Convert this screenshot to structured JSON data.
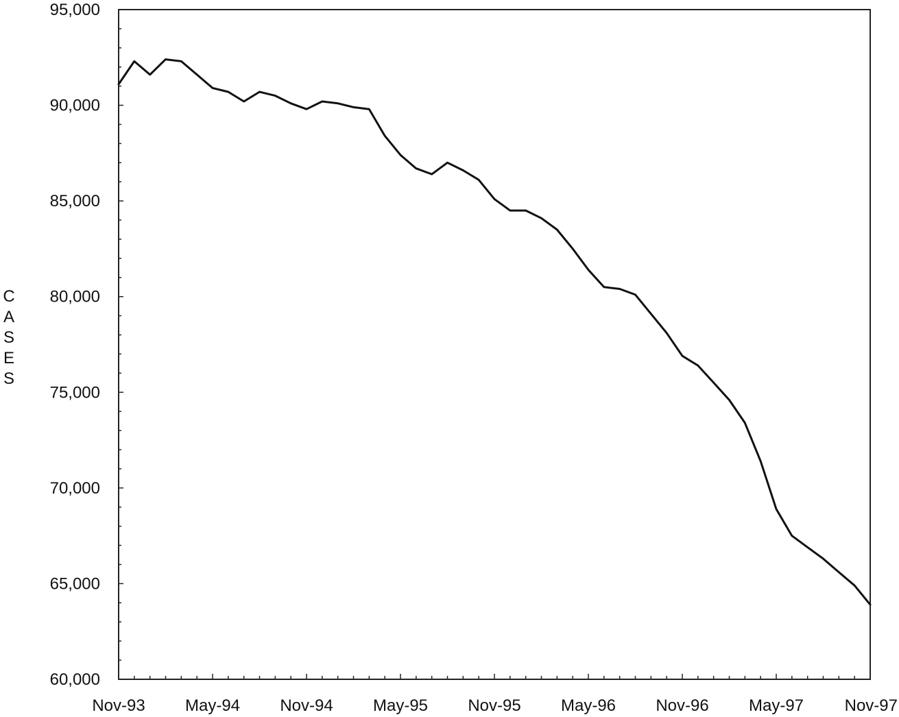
{
  "chart_data": {
    "type": "line",
    "title": "",
    "xlabel": "",
    "ylabel": "CASES",
    "x_tick_labels": [
      "Nov-93",
      "May-94",
      "Nov-94",
      "May-95",
      "Nov-95",
      "May-96",
      "Nov-96",
      "May-97",
      "Nov-97"
    ],
    "y_tick_labels": [
      "60,000",
      "65,000",
      "70,000",
      "75,000",
      "80,000",
      "85,000",
      "90,000",
      "95,000"
    ],
    "ylim": [
      60000,
      95000
    ],
    "xlim_months": [
      "Nov-93",
      "Nov-97"
    ],
    "grid": false,
    "legend": "none",
    "series": [
      {
        "x": [
          "Nov-93",
          "Dec-93",
          "Jan-94",
          "Feb-94",
          "Mar-94",
          "Apr-94",
          "May-94",
          "Jun-94",
          "Jul-94",
          "Aug-94",
          "Sep-94",
          "Oct-94",
          "Nov-94",
          "Dec-94",
          "Jan-95",
          "Feb-95",
          "Mar-95",
          "Apr-95",
          "May-95",
          "Jun-95",
          "Jul-95",
          "Aug-95",
          "Sep-95",
          "Oct-95",
          "Nov-95",
          "Dec-95",
          "Jan-96",
          "Feb-96",
          "Mar-96",
          "Apr-96",
          "May-96",
          "Jun-96",
          "Jul-96",
          "Aug-96",
          "Sep-96",
          "Oct-96",
          "Nov-96",
          "Dec-96",
          "Jan-97",
          "Feb-97",
          "Mar-97",
          "Apr-97",
          "May-97",
          "Jun-97",
          "Jul-97",
          "Aug-97",
          "Sep-97",
          "Oct-97",
          "Nov-97"
        ],
        "values": [
          91100,
          92300,
          91600,
          92400,
          92300,
          91600,
          90900,
          90700,
          90200,
          90700,
          90500,
          90100,
          89800,
          90200,
          90100,
          89900,
          89800,
          88400,
          87400,
          86700,
          86400,
          87000,
          86600,
          86100,
          85100,
          84500,
          84500,
          84100,
          83500,
          82500,
          81400,
          80500,
          80400,
          80100,
          79100,
          78100,
          76900,
          76400,
          75500,
          74600,
          73400,
          71400,
          68900,
          67500,
          66900,
          66300,
          65600,
          64900,
          63900
        ]
      }
    ],
    "colors": {
      "line": "#111111",
      "axes": "#222222",
      "background": "#ffffff"
    }
  }
}
